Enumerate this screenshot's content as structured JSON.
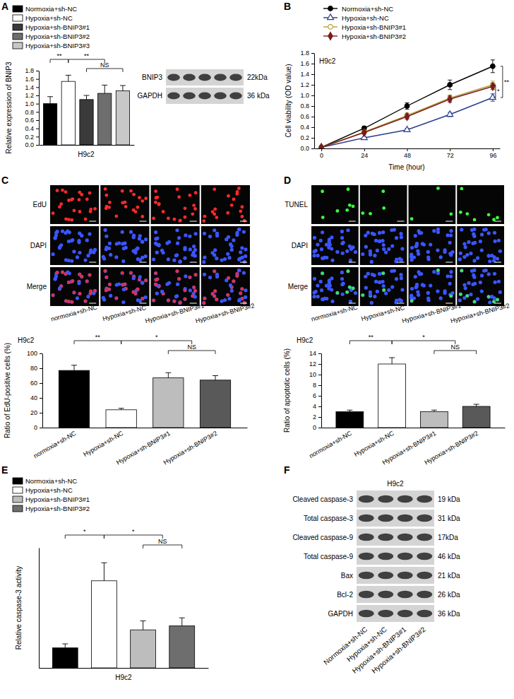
{
  "panel_letters": [
    "A",
    "B",
    "C",
    "D",
    "E",
    "F"
  ],
  "chart_data": [
    {
      "type": "bar",
      "x_label": "H9c2",
      "y_label": "Relative expression of BNIP3",
      "categories": [
        "Normoxia+sh-NC",
        "Hypoxia+sh-NC",
        "Hypoxia+sh-BNIP3#1",
        "Hypoxia+sh-BNIP3#2",
        "Hypoxia+sh-BNIP3#3"
      ],
      "values": [
        1.0,
        1.54,
        1.1,
        1.25,
        1.31
      ],
      "error": [
        0.17,
        0.15,
        0.1,
        0.2,
        0.13
      ],
      "colors": [
        "#000000",
        "#ffffff",
        "#3a3a3a",
        "#6e6e6e",
        "#c8c8c8"
      ],
      "ylim": [
        0,
        1.8
      ],
      "yticks": [
        {
          "value": 0,
          "label": "0.0"
        },
        0.2,
        0.4,
        0.6,
        0.8,
        {
          "value": 1,
          "label": "1.0"
        },
        1.2,
        1.4,
        1.6,
        1.8
      ],
      "legend": "top-left",
      "tick_labels": "y",
      "annotations": [
        "**",
        "**",
        "NS"
      ]
    },
    {
      "type": "line",
      "title": "H9c2",
      "x_label": "Time (hour)",
      "y_label": "Cell viability (OD value)",
      "x": [
        0,
        24,
        48,
        72,
        96
      ],
      "xlim": [
        -4,
        100
      ],
      "xticks": [
        0,
        24,
        48,
        72,
        96
      ],
      "ylim": [
        0,
        1.8
      ],
      "yticks": [
        {
          "value": 0,
          "label": "0.0"
        },
        0.2,
        0.4,
        0.6,
        0.8,
        {
          "value": 1,
          "label": "1.0"
        },
        1.2,
        1.4,
        1.6,
        1.8
      ],
      "legend": "top-left",
      "series": [
        {
          "name": "Normoxia+sh-NC",
          "color": "#000000",
          "marker": "circle",
          "values": [
            0.02,
            0.38,
            0.8,
            1.2,
            1.55
          ],
          "error": [
            0.02,
            0.04,
            0.06,
            0.09,
            0.12
          ]
        },
        {
          "name": "Hypoxia+sh-NC",
          "color": "#283c8c",
          "marker": "triangle-open",
          "values": [
            0.02,
            0.2,
            0.35,
            0.64,
            0.96
          ],
          "error": [
            0.02,
            0.02,
            0.03,
            0.04,
            0.07
          ]
        },
        {
          "name": "Hypoxia+sh-BNIP3#1",
          "color": "#b5a03c",
          "marker": "circle-open",
          "values": [
            0.02,
            0.31,
            0.62,
            0.95,
            1.2
          ],
          "error": [
            0.02,
            0.03,
            0.05,
            0.06,
            0.07
          ]
        },
        {
          "name": "Hypoxia+sh-BNIP3#2",
          "color": "#7b1c1c",
          "marker": "diamond",
          "values": [
            0.02,
            0.3,
            0.6,
            0.93,
            1.17
          ],
          "error": [
            0.02,
            0.03,
            0.05,
            0.06,
            0.06
          ]
        }
      ],
      "annotations": [
        "**",
        "*"
      ]
    },
    {
      "type": "bar",
      "title": "H9c2",
      "y_label": "Ratio of EdU-positive cells (%)",
      "categories": [
        "normoxia+sh-NC",
        "Hypoxia+sh-NC",
        "Hypoxia+sh-BNIP3#1",
        "Hypoxia+sh-BNIP3#2"
      ],
      "values": [
        77,
        24,
        67,
        64
      ],
      "error": [
        7,
        2,
        7,
        6
      ],
      "colors": [
        "#000000",
        "#ffffff",
        "#bdbdbd",
        "#595959"
      ],
      "ylim": [
        0,
        100
      ],
      "yticks": [
        0,
        20,
        40,
        60,
        80,
        100
      ],
      "annotations": [
        "**",
        "*",
        "NS"
      ]
    },
    {
      "type": "bar",
      "title": "H9c2",
      "y_label": "Ratio of apoptotic cells (%)",
      "categories": [
        "normoxia+sh-NC",
        "Hypoxia+sh-NC",
        "Hypoxia+sh-BNIP3#1",
        "Hypoxia+sh-BNIP3#2"
      ],
      "values": [
        3,
        12,
        3,
        4
      ],
      "error": [
        0.3,
        1.2,
        0.3,
        0.4
      ],
      "colors": [
        "#000000",
        "#ffffff",
        "#bdbdbd",
        "#595959"
      ],
      "ylim": [
        0,
        14
      ],
      "yticks": [
        0,
        2,
        4,
        6,
        8,
        10,
        12,
        14
      ],
      "annotations": [
        "**",
        "*",
        "NS"
      ]
    },
    {
      "type": "bar",
      "x_label": "H9c2",
      "y_label": "Relative caspase-3 activity",
      "categories": [
        "Normoxia+sh-NC",
        "Hypoxia+sh-NC",
        "Hypoxia+sh-BNIP3#1",
        "Hypoxia+sh-BNIP3#2"
      ],
      "values": [
        1,
        4.35,
        1.9,
        2.1
      ],
      "error": [
        0.2,
        0.9,
        0.45,
        0.4
      ],
      "colors": [
        "#000000",
        "#ffffff",
        "#bdbdbd",
        "#6e6e6e"
      ],
      "ylim": [
        0,
        6
      ],
      "tick_labels": false,
      "legend": "top-left",
      "annotations": [
        "*",
        "*",
        "NS"
      ]
    }
  ],
  "images": [
    {
      "rows": [
        "EdU",
        "DAPI",
        "Merge"
      ],
      "columns": [
        "normoxia+sh-NC",
        "Hypoxia+sh-NC",
        "Hypoxia+sh-BNIP3#1",
        "Hypoxia+sh-BNIP3#2"
      ]
    },
    {
      "rows": [
        "TUNEL",
        "DAPI",
        "Merge"
      ],
      "columns": [
        "normoxia+sh-NC",
        "Hypoxia+sh-NC",
        "Hypoxia+sh-BNIP3#1",
        "Hypoxia+sh-BNIP3#2"
      ]
    }
  ],
  "blots": [
    {
      "rows": [
        {
          "label": "BNIP3",
          "size": "22kDa"
        },
        {
          "label": "GAPDH",
          "size": "36 kDa"
        }
      ]
    },
    {
      "title": "H9c2",
      "rows": [
        {
          "label": "Cleaved caspase-3",
          "size": "19 kDa"
        },
        {
          "label": "Total caspase-3",
          "size": "31 kDa"
        },
        {
          "label": "Cleaved caspase-9",
          "size": "17kDa"
        },
        {
          "label": "Total caspase-9",
          "size": "46 kDa"
        },
        {
          "label": "Bax",
          "size": "21 kDa"
        },
        {
          "label": "Bcl-2",
          "size": "26 kDa"
        },
        {
          "label": "GAPDH",
          "size": "36 kDa"
        }
      ],
      "lanes": [
        "Normoxia+sh-NC",
        "Hypoxia+sh-NC",
        "Hypoxia+sh-BNIP3#1",
        "Hypoxia+sh-BNIP3#2"
      ]
    }
  ]
}
